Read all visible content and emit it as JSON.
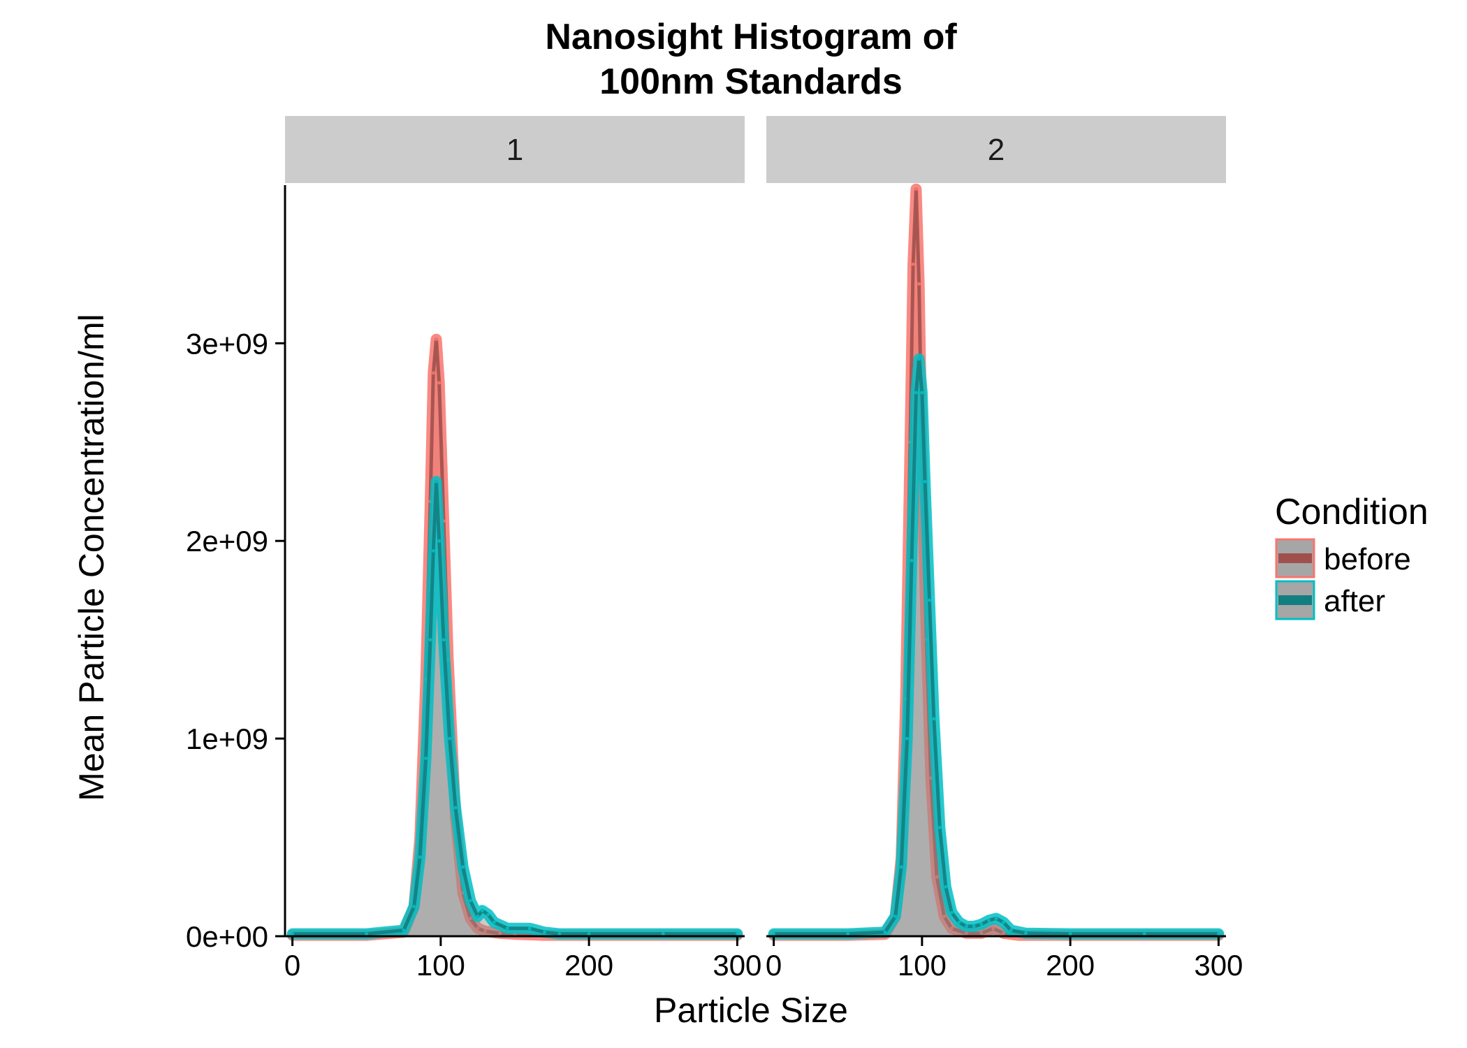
{
  "chart_data": {
    "type": "area",
    "title_lines": [
      "Nanosight Histogram of",
      "100nm Standards"
    ],
    "xlabel": "Particle Size",
    "ylabel": "Mean Particle Concentration/ml",
    "xlim": [
      -5,
      305
    ],
    "ylim": [
      0,
      3800000000
    ],
    "x_ticks": [
      0,
      100,
      200,
      300
    ],
    "x_tick_labels": [
      "0",
      "100",
      "200",
      "300"
    ],
    "y_ticks": [
      0,
      1000000000,
      2000000000,
      3000000000
    ],
    "y_tick_labels": [
      "0e+00",
      "1e+09",
      "2e+09",
      "3e+09"
    ],
    "grid": false,
    "legend": {
      "title": "Condition",
      "position": "right",
      "entries": [
        {
          "label": "before",
          "color": "#F8766D",
          "fill": "#A0504C"
        },
        {
          "label": "after",
          "color": "#00BFC4",
          "fill": "#127E82"
        }
      ]
    },
    "colors": {
      "before_line": "#F8766D",
      "after_line": "#00BFC4",
      "before_fill": "#A0504C",
      "after_fill": "#127E82",
      "ribbon_gray": "#8c8c8c",
      "strip_bg": "#CCCCCC"
    },
    "panels": [
      {
        "strip": "1",
        "series": [
          {
            "name": "before",
            "x": [
              0,
              50,
              75,
              82,
              86,
              90,
              93,
              95,
              97,
              99,
              102,
              105,
              110,
              115,
              120,
              125,
              130,
              140,
              150,
              170,
              200,
              250,
              300
            ],
            "y": [
              5000000.0,
              5000000.0,
              20000000.0,
              150000000.0,
              500000000.0,
              1300000000.0,
              2200000000.0,
              2850000000.0,
              3020000000.0,
              2800000000.0,
              2100000000.0,
              1400000000.0,
              600000000.0,
              220000000.0,
              90000000.0,
              40000000.0,
              25000000.0,
              15000000.0,
              10000000.0,
              5000000.0,
              5000000.0,
              5000000.0,
              5000000.0
            ]
          },
          {
            "name": "after",
            "x": [
              0,
              50,
              75,
              82,
              86,
              90,
              93,
              95,
              97,
              99,
              102,
              106,
              110,
              115,
              120,
              125,
              128,
              132,
              136,
              145,
              160,
              170,
              180,
              200,
              250,
              300
            ],
            "y": [
              12000000.0,
              12000000.0,
              30000000.0,
              150000000.0,
              400000000.0,
              900000000.0,
              1500000000.0,
              1950000000.0,
              2300000000.0,
              2000000000.0,
              1500000000.0,
              1000000000.0,
              650000000.0,
              350000000.0,
              180000000.0,
              100000000.0,
              130000000.0,
              110000000.0,
              70000000.0,
              40000000.0,
              40000000.0,
              20000000.0,
              12000000.0,
              12000000.0,
              12000000.0,
              12000000.0
            ]
          }
        ]
      },
      {
        "strip": "2",
        "series": [
          {
            "name": "before",
            "x": [
              0,
              50,
              75,
              82,
              86,
              89,
              92,
              94,
              96,
              98,
              100,
              103,
              106,
              110,
              115,
              120,
              130,
              140,
              148,
              155,
              165,
              200,
              250,
              300
            ],
            "y": [
              5000000.0,
              5000000.0,
              10000000.0,
              100000000.0,
              400000000.0,
              1200000000.0,
              2500000000.0,
              3400000000.0,
              3780000000.0,
              3300000000.0,
              2400000000.0,
              1500000000.0,
              800000000.0,
              300000000.0,
              100000000.0,
              40000000.0,
              15000000.0,
              15000000.0,
              40000000.0,
              15000000.0,
              5000000.0,
              5000000.0,
              5000000.0,
              5000000.0
            ]
          },
          {
            "name": "after",
            "x": [
              0,
              50,
              75,
              82,
              86,
              90,
              93,
              96,
              98,
              100,
              102,
              105,
              108,
              112,
              116,
              120,
              125,
              130,
              135,
              140,
              145,
              150,
              155,
              160,
              170,
              200,
              250,
              300
            ],
            "y": [
              12000000.0,
              12000000.0,
              20000000.0,
              100000000.0,
              350000000.0,
              1000000000.0,
              1900000000.0,
              2750000000.0,
              2920000000.0,
              2750000000.0,
              2300000000.0,
              1700000000.0,
              1100000000.0,
              550000000.0,
              250000000.0,
              120000000.0,
              70000000.0,
              50000000.0,
              50000000.0,
              60000000.0,
              80000000.0,
              90000000.0,
              70000000.0,
              30000000.0,
              15000000.0,
              12000000.0,
              12000000.0,
              12000000.0
            ]
          }
        ]
      }
    ]
  }
}
